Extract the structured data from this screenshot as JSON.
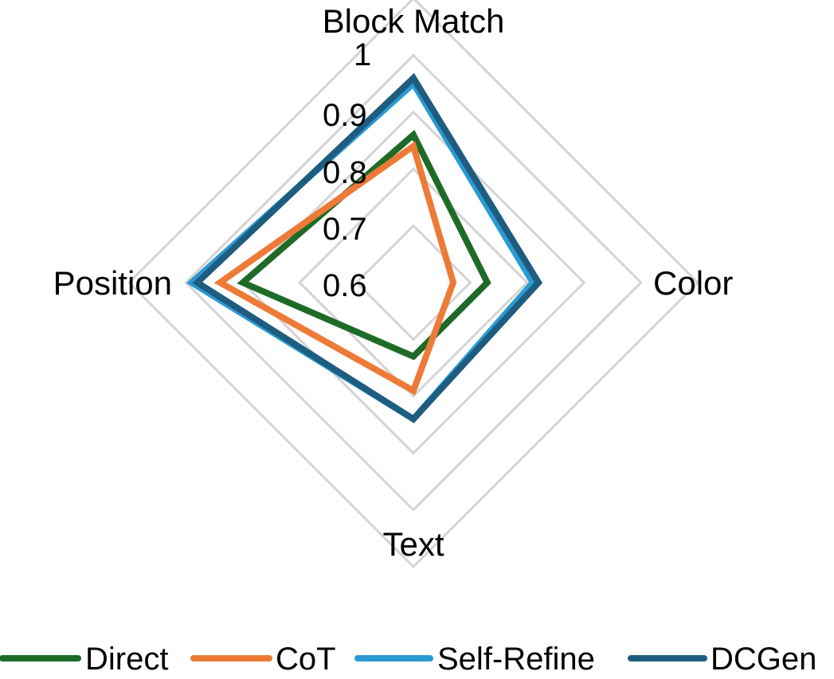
{
  "chart_data": {
    "type": "radar",
    "axes": [
      "Block Match",
      "Color",
      "Text",
      "Position"
    ],
    "rlim": [
      0.5,
      1
    ],
    "ticks": [
      0.6,
      0.7,
      0.8,
      0.9,
      1
    ],
    "tick_labels": [
      "0.6",
      "0.7",
      "0.8",
      "0.9",
      "1"
    ],
    "grid": true,
    "legend_position": "bottom",
    "series": [
      {
        "name": "Direct",
        "color": "#1e6b27",
        "values": [
          0.76,
          0.63,
          0.63,
          0.8
        ]
      },
      {
        "name": "CoT",
        "color": "#ee7a38",
        "values": [
          0.74,
          0.57,
          0.69,
          0.84
        ]
      },
      {
        "name": "Self-Refine",
        "color": "#2a9ad2",
        "values": [
          0.85,
          0.71,
          0.74,
          0.89
        ]
      },
      {
        "name": "DCGen",
        "color": "#1e5c80",
        "values": [
          0.86,
          0.72,
          0.74,
          0.88
        ]
      }
    ]
  }
}
